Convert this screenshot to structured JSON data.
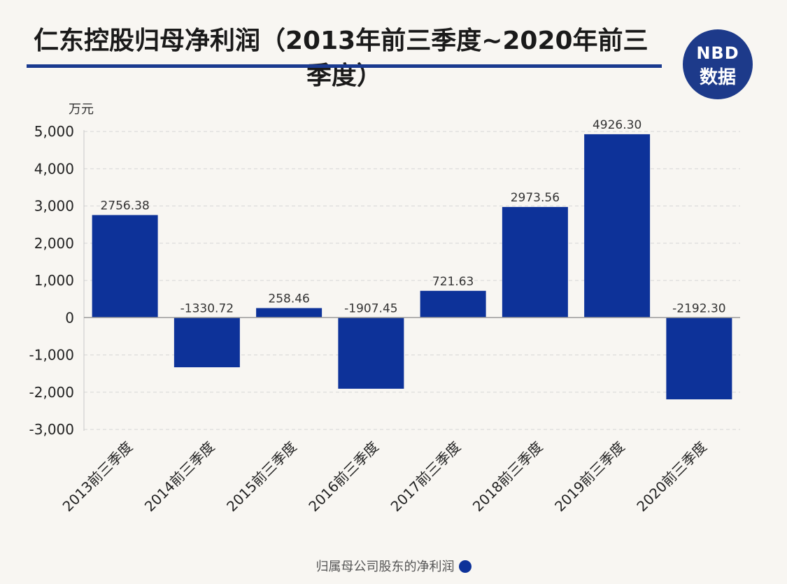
{
  "title_line1": "仁东控股归母净利润（2013年前三季度~2020年前三",
  "title_line2": "季度）",
  "logo": {
    "top": "NBD",
    "bottom": "数据"
  },
  "colors": {
    "bar": "#0d3299",
    "title_rule": "#1a3a8f",
    "logo_bg": "#1d3a8a",
    "logo_accent": "#e53935"
  },
  "chart_data": {
    "type": "bar",
    "unit_label": "万元",
    "categories": [
      "2013前三季度",
      "2014前三季度",
      "2015前三季度",
      "2016前三季度",
      "2017前三季度",
      "2018前三季度",
      "2019前三季度",
      "2020前三季度"
    ],
    "series": [
      {
        "name": "归属母公司股东的净利润",
        "values": [
          2756.38,
          -1330.72,
          258.46,
          -1907.45,
          721.63,
          2973.56,
          4926.3,
          -2192.3
        ]
      }
    ],
    "value_labels": [
      "2756.38",
      "-1330.72",
      "258.46",
      "-1907.45",
      "721.63",
      "2973.56",
      "4926.30",
      "-2192.30"
    ],
    "ylim": [
      -3000,
      5000
    ],
    "yticks": [
      5000,
      4000,
      3000,
      2000,
      1000,
      0,
      -1000,
      -2000,
      -3000
    ],
    "ytick_labels": [
      "5,000",
      "4,000",
      "3,000",
      "2,000",
      "1,000",
      "0",
      "-1,000",
      "-2,000",
      "-3,000"
    ],
    "grid": true,
    "legend_position": "bottom-center"
  }
}
